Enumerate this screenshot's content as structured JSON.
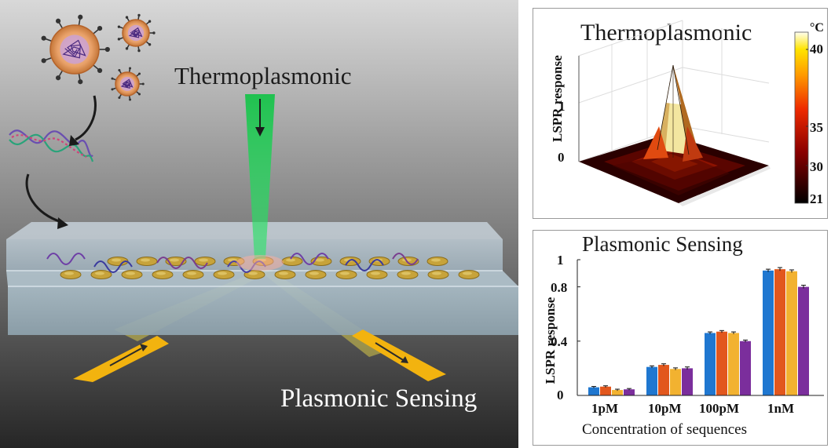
{
  "scene": {
    "title_top": "Thermoplasmonic",
    "title_bottom": "Plasmonic Sensing",
    "colors": {
      "laser": "#1fd65a",
      "beam": "#f7e33a",
      "arrow": "#f2b30f",
      "nanodisk": "#c7a33a"
    }
  },
  "thermo_panel": {
    "title": "Thermoplasmonic",
    "ylabel": "LSPR response",
    "z_ticks": [
      "0",
      "1"
    ],
    "colorbar": {
      "unit": "°C",
      "ticks": [
        "40",
        "35",
        "30",
        "21"
      ],
      "colormap": "hot"
    }
  },
  "plasmonic_panel": {
    "title": "Plasmonic Sensing",
    "ylabel": "LSPR response",
    "xlabel": "Concentration of sequences",
    "y_ticks": [
      "0",
      "0.4",
      "0.8",
      "1"
    ],
    "category_labels": [
      "1pM",
      "10pM",
      "100pM",
      "1nM"
    ]
  },
  "chart_data": {
    "type": "bar",
    "categories": [
      "1pM",
      "10pM",
      "100pM",
      "1nM"
    ],
    "series": [
      {
        "values": [
          0.06,
          0.21,
          0.46,
          0.92
        ],
        "errors": [
          0.006,
          0.008,
          0.008,
          0.01
        ],
        "color": "#1f77d0"
      },
      {
        "values": [
          0.065,
          0.225,
          0.47,
          0.93
        ],
        "errors": [
          0.006,
          0.008,
          0.008,
          0.012
        ],
        "color": "#e2571d"
      },
      {
        "values": [
          0.04,
          0.195,
          0.46,
          0.915
        ],
        "errors": [
          0.006,
          0.008,
          0.008,
          0.01
        ],
        "color": "#f2b230"
      },
      {
        "values": [
          0.045,
          0.2,
          0.4,
          0.8
        ],
        "errors": [
          0.006,
          0.01,
          0.008,
          0.012
        ],
        "color": "#7b2e9c"
      }
    ],
    "ylabel": "LSPR response",
    "xlabel": "Concentration of sequences",
    "ylim": [
      0,
      1
    ],
    "y_ticks": [
      0,
      0.4,
      0.8,
      1
    ],
    "grid": false,
    "error_bars": true
  }
}
